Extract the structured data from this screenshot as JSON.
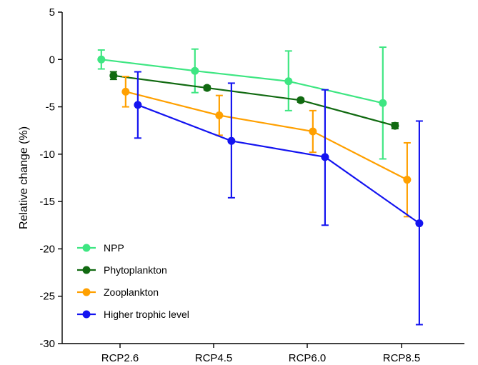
{
  "chart_data": {
    "type": "line",
    "title": "",
    "xlabel": "",
    "ylabel": "Relative change (%)",
    "categories": [
      "RCP2.6",
      "RCP4.5",
      "RCP6.0",
      "RCP8.5"
    ],
    "ylim": [
      -30,
      5
    ],
    "yticks": [
      5,
      0,
      -5,
      -10,
      -15,
      -20,
      -25,
      -30
    ],
    "grid": false,
    "legend_position": "bottom-left",
    "series": [
      {
        "name": "NPP",
        "color": "#3ee682",
        "marker": "circle",
        "offset": -0.2,
        "values": [
          0.0,
          -1.2,
          -2.3,
          -4.6
        ],
        "err_low": [
          -1.0,
          -3.5,
          -5.4,
          -10.5
        ],
        "err_high": [
          1.0,
          1.1,
          0.9,
          1.3
        ]
      },
      {
        "name": "Phytoplankton",
        "color": "#116a11",
        "marker": "circle",
        "offset": -0.07,
        "values": [
          -1.7,
          -3.0,
          -4.3,
          -7.0
        ],
        "err_low": [
          -2.1,
          -3.2,
          -4.5,
          -7.3
        ],
        "err_high": [
          -1.3,
          -2.8,
          -4.1,
          -6.7
        ]
      },
      {
        "name": "Zooplankton",
        "color": "#ffa000",
        "marker": "circle",
        "offset": 0.06,
        "values": [
          -3.4,
          -5.9,
          -7.6,
          -12.7
        ],
        "err_low": [
          -5.0,
          -8.0,
          -9.8,
          -16.6
        ],
        "err_high": [
          -1.8,
          -3.8,
          -5.4,
          -8.8
        ]
      },
      {
        "name": "Higher trophic level",
        "color": "#1414f0",
        "marker": "circle",
        "offset": 0.19,
        "values": [
          -4.8,
          -8.6,
          -10.3,
          -17.3
        ],
        "err_low": [
          -8.3,
          -14.6,
          -17.5,
          -28.0
        ],
        "err_high": [
          -1.3,
          -2.5,
          -3.2,
          -6.5
        ]
      }
    ]
  }
}
